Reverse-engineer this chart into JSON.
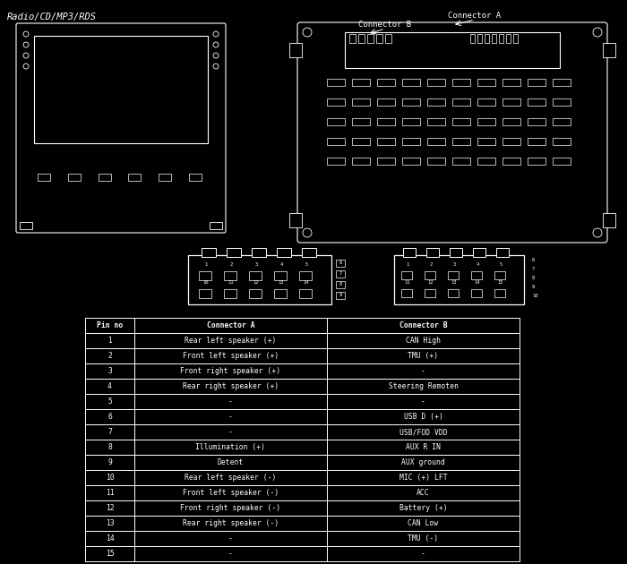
{
  "title": "Radio/CD/MP3/RDS",
  "bg_color": "#000000",
  "fg_color": "#ffffff",
  "table_header": [
    "Pin no",
    "Connector A",
    "Connector B"
  ],
  "table_rows": [
    [
      "1",
      "Rear left speaker (+)",
      "CAN High"
    ],
    [
      "2",
      "Front left speaker (+)",
      "TMU (+)"
    ],
    [
      "3",
      "Front right speaker (+)",
      "-"
    ],
    [
      "4",
      "Rear right speaker (+)",
      "Steering Remoten"
    ],
    [
      "5",
      "-",
      "-"
    ],
    [
      "6",
      "-",
      "USB D (+)"
    ],
    [
      "7",
      "-",
      "USB/FOD VDD"
    ],
    [
      "8",
      "Illumination (+)",
      "AUX R IN"
    ],
    [
      "9",
      "Detent",
      "AUX ground"
    ],
    [
      "10",
      "Rear left speaker (-)",
      "MIC (+) LFT"
    ],
    [
      "11",
      "Front left speaker (-)",
      "ACC"
    ],
    [
      "12",
      "Front right speaker (-)",
      "Battery (+)"
    ],
    [
      "13",
      "Rear right speaker (-)",
      "CAN Low"
    ],
    [
      "14",
      "-",
      "TMU (-)"
    ],
    [
      "15",
      "-",
      "-"
    ]
  ],
  "connector_a_label": "Connector A",
  "connector_b_label": "Connector B"
}
